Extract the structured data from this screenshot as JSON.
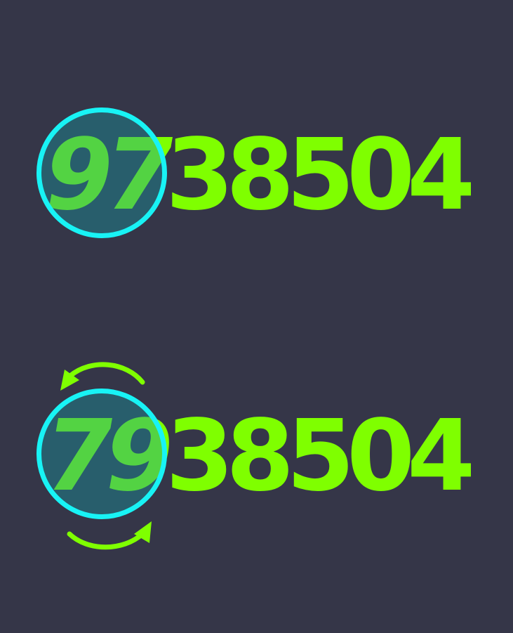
{
  "colors": {
    "background": "#353648",
    "digit": "#7fff00",
    "ring": "#18f3f5",
    "ring_fill": "#1896a0",
    "arrow": "#7fff00"
  },
  "before": {
    "digits": [
      "9",
      "7",
      "3",
      "8",
      "5",
      "0",
      "4"
    ],
    "highlighted_positions": [
      1,
      2
    ]
  },
  "after": {
    "digits": [
      "7",
      "9",
      "3",
      "8",
      "5",
      "0",
      "4"
    ],
    "highlighted_positions": [
      1,
      2
    ],
    "swap_arrows": [
      "arrow-counterclockwise-icon",
      "arrow-clockwise-icon"
    ]
  }
}
